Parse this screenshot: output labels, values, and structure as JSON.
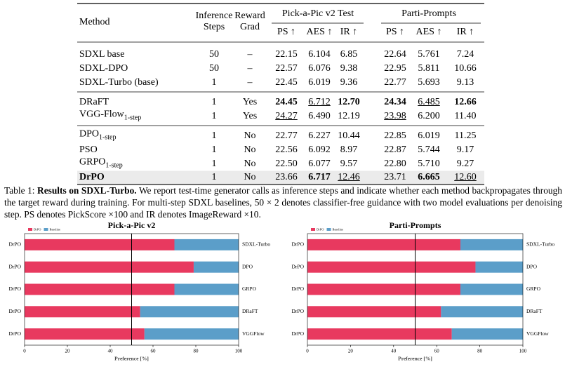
{
  "table": {
    "header": {
      "method": "Method",
      "steps": "Inference Steps",
      "grad": "Reward Grad",
      "groups": [
        "Pick-a-Pic v2 Test",
        "Parti-Prompts"
      ],
      "metrics": [
        "PS ↑",
        "AES ↑",
        "IR ↑",
        "PS ↑",
        "AES ↑",
        "IR ↑"
      ]
    },
    "groups": [
      [
        {
          "method": "SDXL base",
          "cells": [
            "50",
            "–",
            "22.15",
            "6.104",
            "6.85",
            "22.64",
            "5.761",
            "7.24"
          ]
        },
        {
          "method": "SDXL-DPO",
          "cells": [
            "50",
            "–",
            "22.57",
            "6.076",
            "9.38",
            "22.95",
            "5.811",
            "10.66"
          ]
        },
        {
          "method": "SDXL-Turbo (base)",
          "cells": [
            "1",
            "–",
            "22.45",
            "6.019",
            "9.36",
            "22.77",
            "5.693",
            "9.13"
          ]
        }
      ],
      [
        {
          "method": "DRaFT",
          "cells": [
            "1",
            "Yes",
            "24.45",
            "6.712",
            "12.70",
            "24.34",
            "6.485",
            "12.66"
          ],
          "bold": [
            2,
            4,
            5,
            7
          ],
          "underline": [
            3,
            6
          ]
        },
        {
          "method": "VGG-Flow",
          "method_sub": "1-step",
          "cells": [
            "1",
            "Yes",
            "24.27",
            "6.490",
            "12.19",
            "23.98",
            "6.200",
            "11.40"
          ],
          "underline": [
            2,
            5
          ]
        }
      ],
      [
        {
          "method": "DPO",
          "method_sub": "1-step",
          "cells": [
            "1",
            "No",
            "22.77",
            "6.227",
            "10.44",
            "22.85",
            "6.019",
            "11.25"
          ]
        },
        {
          "method": "PSO",
          "cells": [
            "1",
            "No",
            "22.56",
            "6.092",
            "8.97",
            "22.87",
            "5.744",
            "9.17"
          ]
        },
        {
          "method": "GRPO",
          "method_sub": "1-step",
          "cells": [
            "1",
            "No",
            "22.50",
            "6.077",
            "9.57",
            "22.80",
            "5.710",
            "9.27"
          ]
        },
        {
          "method": "DrPO",
          "cells": [
            "1",
            "No",
            "23.66",
            "6.717",
            "12.46",
            "23.71",
            "6.665",
            "12.60"
          ],
          "bold": [
            3,
            6
          ],
          "underline": [
            4,
            7
          ],
          "highlight": true
        }
      ]
    ]
  },
  "caption": {
    "label": "Table 1:",
    "title": "Results on SDXL-Turbo.",
    "text": "We report test-time generator calls as inference steps and indicate whether each method backpropagates through the target reward during training. For multi-step SDXL baselines, 50 × 2 denotes classifier-free guidance with two model evaluations per denoising step. PS denotes PickScore ×100 and IR denotes ImageReward ×10."
  },
  "chart_data": [
    {
      "type": "bar",
      "orientation": "horizontal",
      "stacked": true,
      "title": "Pick-a-Pic v2",
      "categories": [
        "DrPO",
        "DrPO",
        "DrPO",
        "DrPO",
        "DrPO"
      ],
      "right_labels": [
        "SDXL-Turbo",
        "DPO",
        "GRPO",
        "DRaFT",
        "VGGFlow"
      ],
      "series": [
        {
          "name": "DrPO",
          "color": "#e8395f",
          "values": [
            70,
            79,
            70,
            54,
            56
          ]
        },
        {
          "name": "Baseline",
          "color": "#5b9ec9",
          "values": [
            30,
            21,
            30,
            46,
            44
          ]
        }
      ],
      "xlim": [
        0,
        100
      ],
      "xticks": [
        0,
        20,
        40,
        60,
        80,
        100
      ],
      "xlabel": "Preference [%]",
      "reference_line": 50
    },
    {
      "type": "bar",
      "orientation": "horizontal",
      "stacked": true,
      "title": "Parti-Prompts",
      "categories": [
        "DrPO",
        "DrPO",
        "DrPO",
        "DrPO",
        "DrPO"
      ],
      "right_labels": [
        "SDXL-Turbo",
        "DPO",
        "GRPO",
        "DRaFT",
        "VGGFlow"
      ],
      "series": [
        {
          "name": "DrPO",
          "color": "#e8395f",
          "values": [
            71,
            78,
            71,
            62,
            67
          ]
        },
        {
          "name": "Baseline",
          "color": "#5b9ec9",
          "values": [
            29,
            22,
            29,
            38,
            33
          ]
        }
      ],
      "xlim": [
        0,
        100
      ],
      "xticks": [
        0,
        20,
        40,
        60,
        80,
        100
      ],
      "xlabel": "Preference [%]",
      "reference_line": 50
    }
  ]
}
